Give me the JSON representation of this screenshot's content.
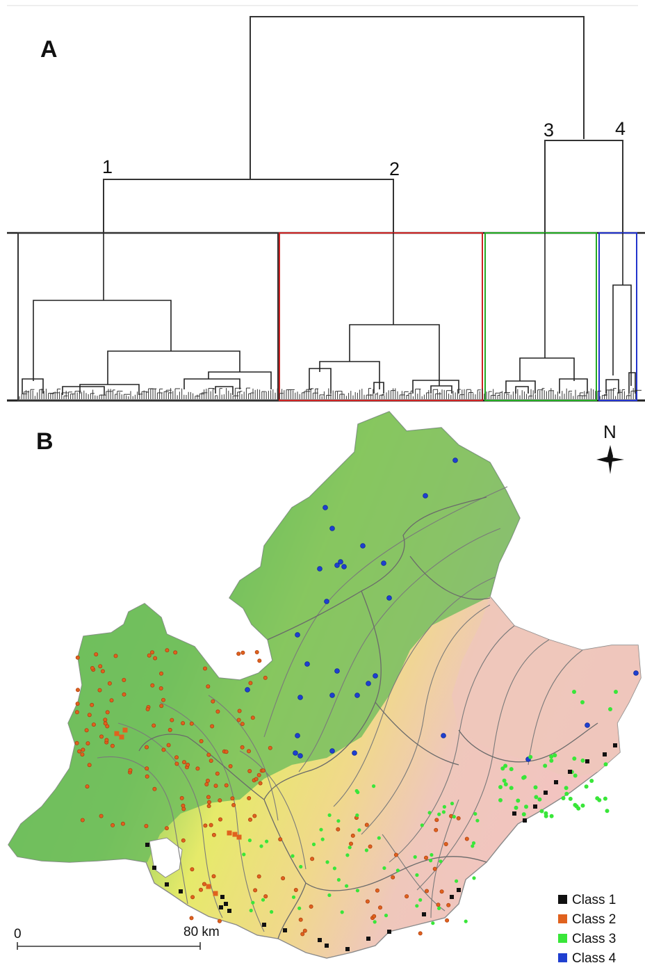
{
  "panels": {
    "a": "A",
    "b": "B"
  },
  "dendrogram": {
    "cluster_labels": [
      "1",
      "2",
      "3",
      "4"
    ],
    "cluster_colors": [
      "#000000",
      "#cc2222",
      "#22aa22",
      "#2233cc"
    ]
  },
  "map": {
    "north_label": "N",
    "scale": {
      "start": "0",
      "end": "80 km"
    },
    "legend": [
      {
        "label": "Class 1",
        "color": "#111111"
      },
      {
        "label": "Class 2",
        "color": "#e0621e"
      },
      {
        "label": "Class 3",
        "color": "#39e639"
      },
      {
        "label": "Class 4",
        "color": "#1f3fd0"
      }
    ],
    "colors": {
      "land_green": "#6cbc5c",
      "land_yellow": "#e6ea6a",
      "land_pink": "#efc7bb",
      "border": "#7a7a7a"
    }
  }
}
